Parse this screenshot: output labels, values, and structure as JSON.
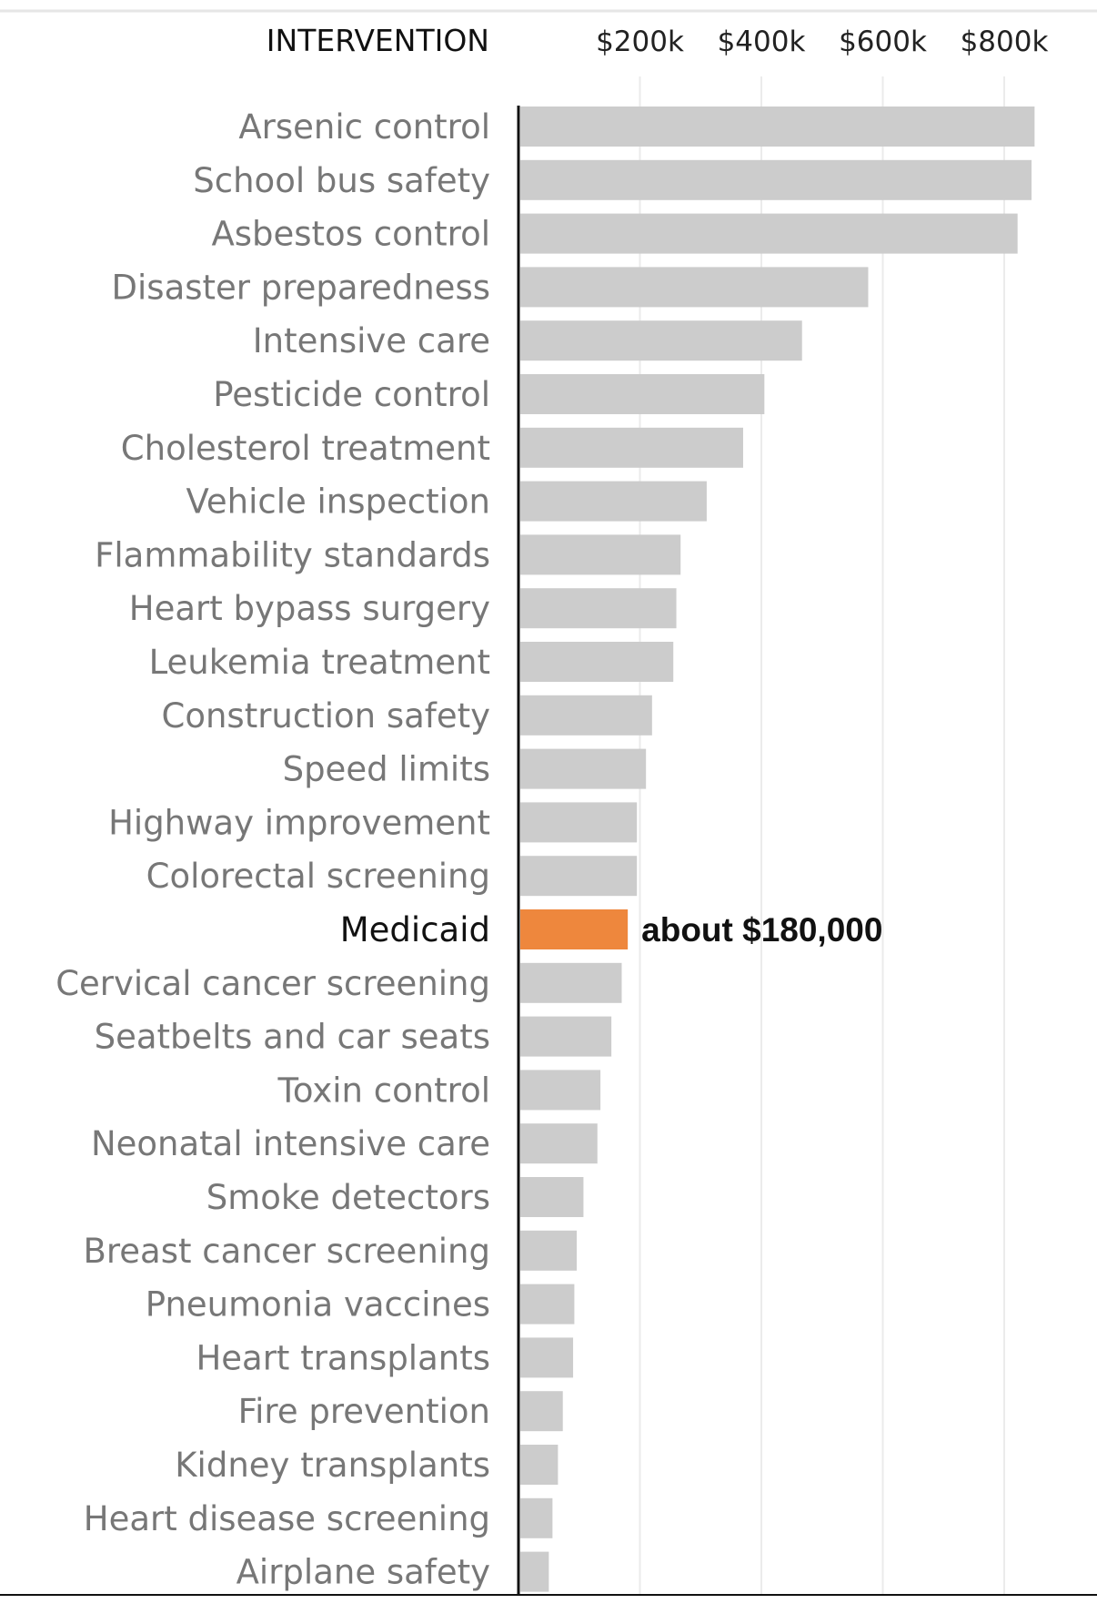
{
  "chart_data": {
    "type": "bar",
    "orientation": "horizontal",
    "column_header": "INTERVENTION",
    "x_ticks": [
      "$200k",
      "$400k",
      "$600k",
      "$800k"
    ],
    "x_tick_values": [
      200000,
      400000,
      600000,
      800000
    ],
    "xlim": [
      0,
      880000
    ],
    "grid": true,
    "categories": [
      "Arsenic control",
      "School bus safety",
      "Asbestos control",
      "Disaster preparedness",
      "Intensive care",
      "Pesticide control",
      "Cholesterol treatment",
      "Vehicle inspection",
      "Flammability standards",
      "Heart bypass surgery",
      "Leukemia treatment",
      "Construction safety",
      "Speed limits",
      "Highway improvement",
      "Colorectal screening",
      "Medicaid",
      "Cervical cancer screening",
      "Seatbelts and car seats",
      "Toxin control",
      "Neonatal intensive care",
      "Smoke detectors",
      "Breast cancer screening",
      "Pneumonia vaccines",
      "Heart transplants",
      "Fire prevention",
      "Kidney transplants",
      "Heart disease screening",
      "Airplane safety"
    ],
    "values": [
      850000,
      845000,
      822000,
      576000,
      467000,
      405000,
      370000,
      310000,
      267000,
      260000,
      255000,
      220000,
      210000,
      195000,
      195000,
      180000,
      170000,
      153000,
      135000,
      130000,
      107000,
      96000,
      92000,
      90000,
      73000,
      65000,
      56000,
      50000
    ],
    "highlight_category": "Medicaid",
    "annotation": "about $180,000",
    "colors": {
      "bar": "#cccccc",
      "highlight": "#ee873d",
      "gridline": "#ebebeb",
      "axis": "#111111"
    }
  }
}
